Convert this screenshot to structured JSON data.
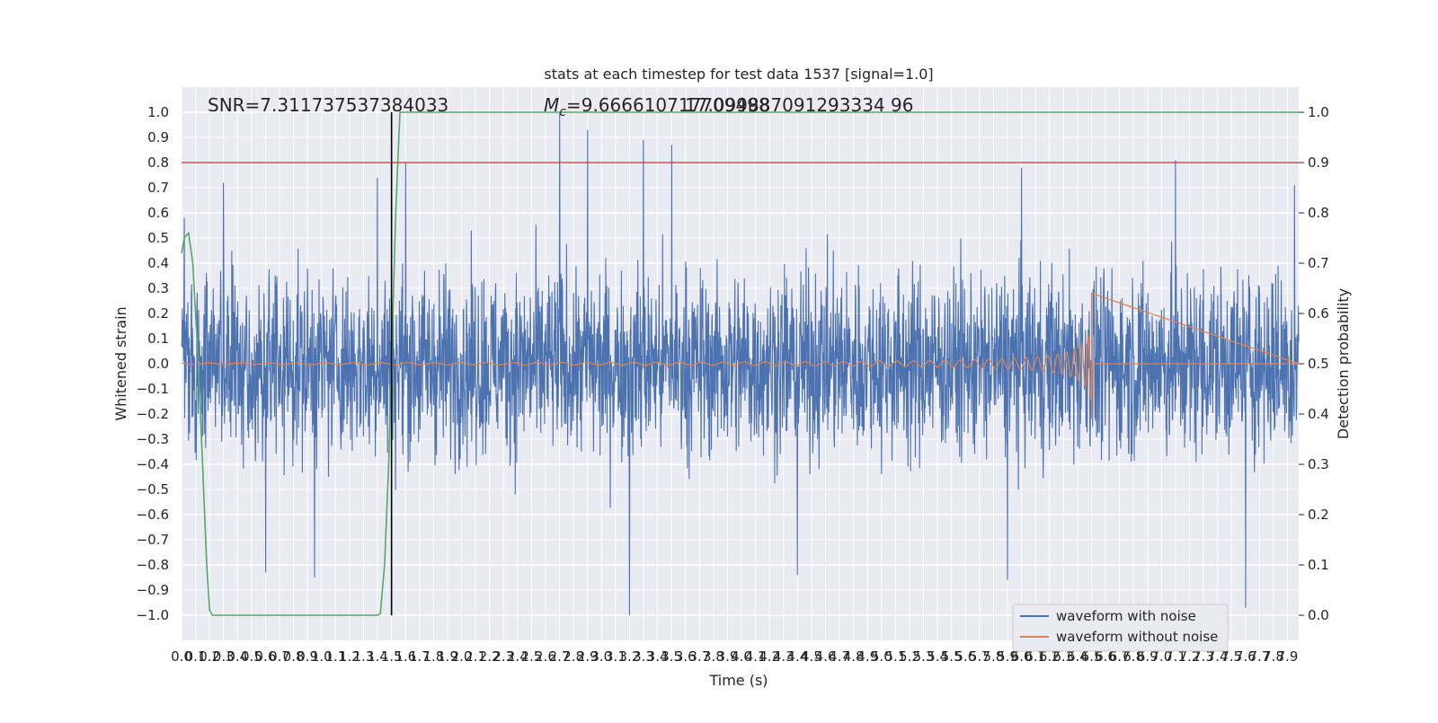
{
  "chart_data": {
    "type": "line",
    "title": "stats at each timestep for test data 1537 [signal=1.0]",
    "xlabel": "Time (s)",
    "ylabel": "Whitened strain",
    "y2label": "Detection probability",
    "xlim": [
      0.0,
      7.98
    ],
    "ylim": [
      -1.1,
      1.1
    ],
    "y2lim": [
      -0.05,
      1.05
    ],
    "x_ticks": [
      0.0,
      0.1,
      0.2,
      0.3,
      0.4,
      0.5,
      0.6,
      0.7,
      0.8,
      0.9,
      1.0,
      1.1,
      1.2,
      1.3,
      1.4,
      1.5,
      1.6,
      1.7,
      1.8,
      1.9,
      2.0,
      2.1,
      2.2,
      2.3,
      2.4,
      2.5,
      2.6,
      2.7,
      2.8,
      2.9,
      3.0,
      3.1,
      3.2,
      3.3,
      3.4,
      3.5,
      3.6,
      3.7,
      3.8,
      3.9,
      4.0,
      4.1,
      4.2,
      4.3,
      4.4,
      4.5,
      4.6,
      4.7,
      4.8,
      4.9,
      5.0,
      5.1,
      5.2,
      5.3,
      5.4,
      5.5,
      5.6,
      5.7,
      5.8,
      5.9,
      6.0,
      6.1,
      6.2,
      6.3,
      6.4,
      6.5,
      6.6,
      6.7,
      6.8,
      6.9,
      7.0,
      7.1,
      7.2,
      7.3,
      7.4,
      7.5,
      7.6,
      7.7,
      7.8,
      7.9
    ],
    "y_ticks": [
      -1.0,
      -0.9,
      -0.8,
      -0.7,
      -0.6,
      -0.5,
      -0.4,
      -0.3,
      -0.2,
      -0.1,
      0.0,
      0.1,
      0.2,
      0.3,
      0.4,
      0.5,
      0.6,
      0.7,
      0.8,
      0.9,
      1.0
    ],
    "y2_ticks": [
      0.0,
      0.1,
      0.2,
      0.3,
      0.4,
      0.5,
      0.6,
      0.7,
      0.8,
      0.9,
      1.0
    ],
    "annotations": {
      "snr": "SNR=7.311737537384033",
      "mc_prefix": "M",
      "mc_sub": "c",
      "mc_value": "=9.666610717709498",
      "mc_overlap": "17.099887091293334 96"
    },
    "threshold": {
      "axis": "y2",
      "value": 0.9,
      "color": "#c44e52"
    },
    "vertical_marker": {
      "x": 1.5,
      "color": "#000000"
    },
    "series": [
      {
        "name": "waveform with noise",
        "color": "#4c72b0",
        "kind": "noise",
        "amplitude_envelope": 0.5,
        "peaks": [
          {
            "x": 0.02,
            "y": 0.58
          },
          {
            "x": 0.3,
            "y": 0.72
          },
          {
            "x": 0.6,
            "y": -0.83
          },
          {
            "x": 0.95,
            "y": -0.85
          },
          {
            "x": 1.4,
            "y": 0.74
          },
          {
            "x": 1.6,
            "y": 0.8
          },
          {
            "x": 2.7,
            "y": 1.0
          },
          {
            "x": 2.9,
            "y": 0.93
          },
          {
            "x": 3.2,
            "y": -1.0
          },
          {
            "x": 3.3,
            "y": 0.89
          },
          {
            "x": 3.5,
            "y": 0.87
          },
          {
            "x": 4.4,
            "y": -0.84
          },
          {
            "x": 5.9,
            "y": -0.86
          },
          {
            "x": 6.0,
            "y": 0.78
          },
          {
            "x": 7.1,
            "y": 0.81
          },
          {
            "x": 7.6,
            "y": -0.97
          },
          {
            "x": 7.95,
            "y": 0.71
          }
        ]
      },
      {
        "name": "waveform without noise",
        "color": "#dd8452",
        "kind": "chirp",
        "merger_time": 6.5,
        "peak_amplitude": 0.28,
        "min_amplitude": -0.22
      },
      {
        "name": "detection probability",
        "color": "#55a868",
        "axis": "y2",
        "x": [
          0.0,
          0.02,
          0.05,
          0.08,
          0.12,
          0.15,
          0.18,
          0.2,
          0.22,
          0.25,
          0.3,
          0.4,
          0.6,
          0.8,
          1.0,
          1.2,
          1.4,
          1.42,
          1.45,
          1.48,
          1.5,
          1.53,
          1.56,
          1.6,
          2.0,
          3.0,
          4.0,
          5.0,
          6.0,
          7.0,
          7.98
        ],
        "y": [
          0.72,
          0.75,
          0.76,
          0.7,
          0.5,
          0.3,
          0.1,
          0.01,
          0.0,
          0.0,
          0.0,
          0.0,
          0.0,
          0.0,
          0.0,
          0.0,
          0.0,
          0.003,
          0.1,
          0.3,
          0.5,
          0.8,
          1.0,
          1.0,
          1.0,
          1.0,
          1.0,
          1.0,
          1.0,
          1.0,
          1.0
        ]
      }
    ],
    "legend": {
      "placement": "lower-right",
      "entries": [
        {
          "label": "waveform with noise",
          "color": "#4c72b0"
        },
        {
          "label": "waveform without noise",
          "color": "#dd8452"
        }
      ]
    }
  }
}
